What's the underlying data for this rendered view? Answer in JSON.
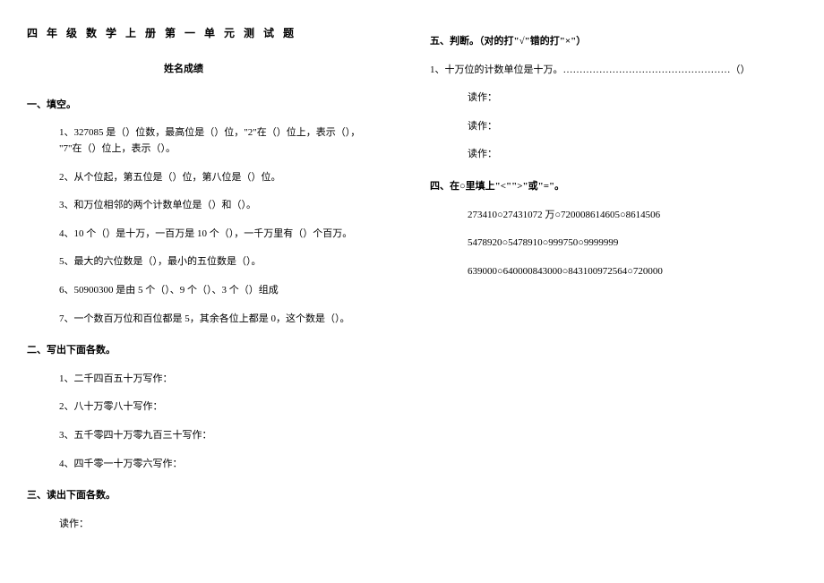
{
  "title": "四年级数学上册第一单元测试题",
  "name_score_label": "姓名成绩",
  "sections": {
    "s1": {
      "head": "一、填空。",
      "q1a": "1、327085 是（）位数，最高位是（）位，\"2\"在（）位上，表示（），",
      "q1b": "\"7\"在（）位上，表示（）。",
      "q2": "2、从个位起，第五位是（）位，第八位是（）位。",
      "q3": "3、和万位相邻的两个计数单位是（）和（）。",
      "q4": "4、10 个（）是十万，一百万是 10 个（），一千万里有（）个百万。",
      "q5": "5、最大的六位数是（），最小的五位数是（）。",
      "q6": "6、50900300 是由 5 个（）、9 个（）、3 个（）组成",
      "q7": "7、一个数百万位和百位都是 5，其余各位上都是 0，这个数是（）。"
    },
    "s2": {
      "head": "二、写出下面各数。",
      "q1": "1、二千四百五十万写作：",
      "q2": "2、八十万零八十写作：",
      "q3": "3、五千零四十万零九百三十写作：",
      "q4": "4、四千零一十万零六写作："
    },
    "s3": {
      "head": "三、读出下面各数。",
      "read": "读作："
    },
    "s5": {
      "head": "五、判断。（对的打\"√\"错的打\"×\"）",
      "q1": "1、十万位的计数单位是十万。……………………………………………（）",
      "read": "读作：",
      "read2": "读作：",
      "read3": "读作："
    },
    "s4": {
      "head": "四、在○里填上\"<\"\">\"或\"=\"。",
      "line1": "273410○27431072 万○720008614605○8614506",
      "line2": "5478920○5478910○999750○9999999",
      "line3": "639000○640000843000○843100972564○720000"
    }
  }
}
